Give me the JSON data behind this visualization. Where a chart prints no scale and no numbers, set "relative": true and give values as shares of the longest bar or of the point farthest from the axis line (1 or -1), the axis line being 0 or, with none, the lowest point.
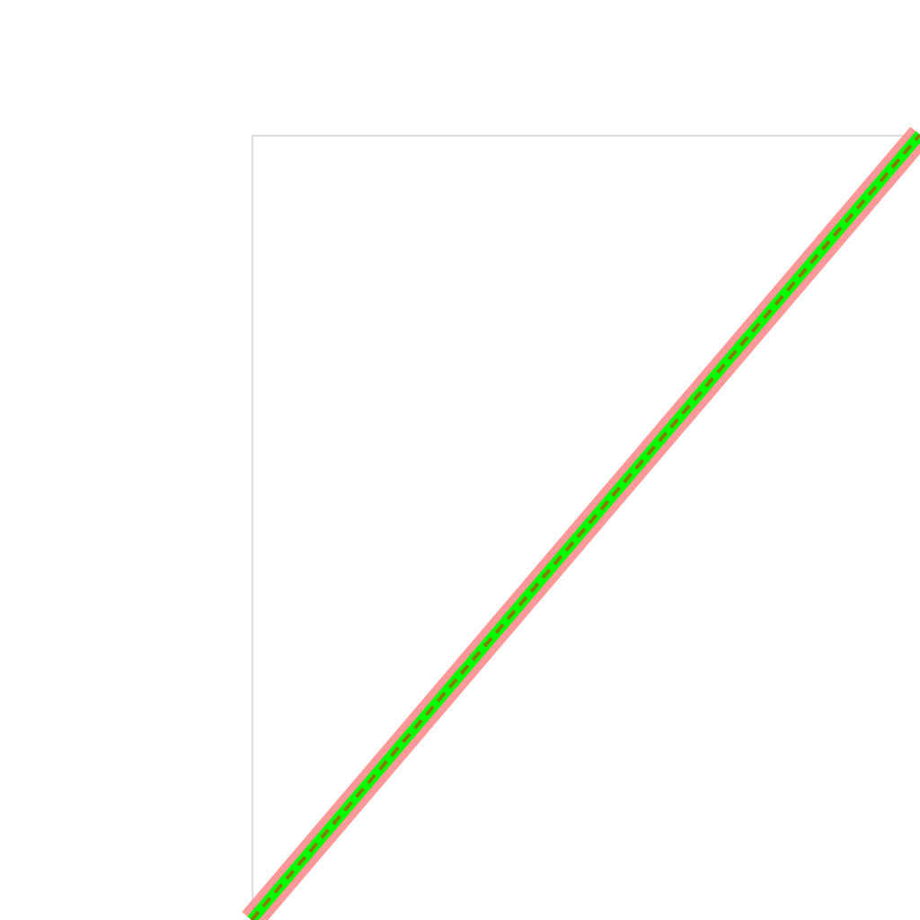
{
  "chart_data": {
    "type": "line",
    "relative": true,
    "categories": [
      null,
      null
    ],
    "marker": "none",
    "series": [
      {
        "color": "#ff9999",
        "values": [
          0,
          1
        ],
        "line_style": "solid"
      },
      {
        "color": "#00ff00",
        "values": [
          0,
          1
        ],
        "line_style": "solid"
      },
      {
        "color": "#808000",
        "values": [
          0,
          1
        ],
        "line_style": "dashed"
      }
    ]
  }
}
